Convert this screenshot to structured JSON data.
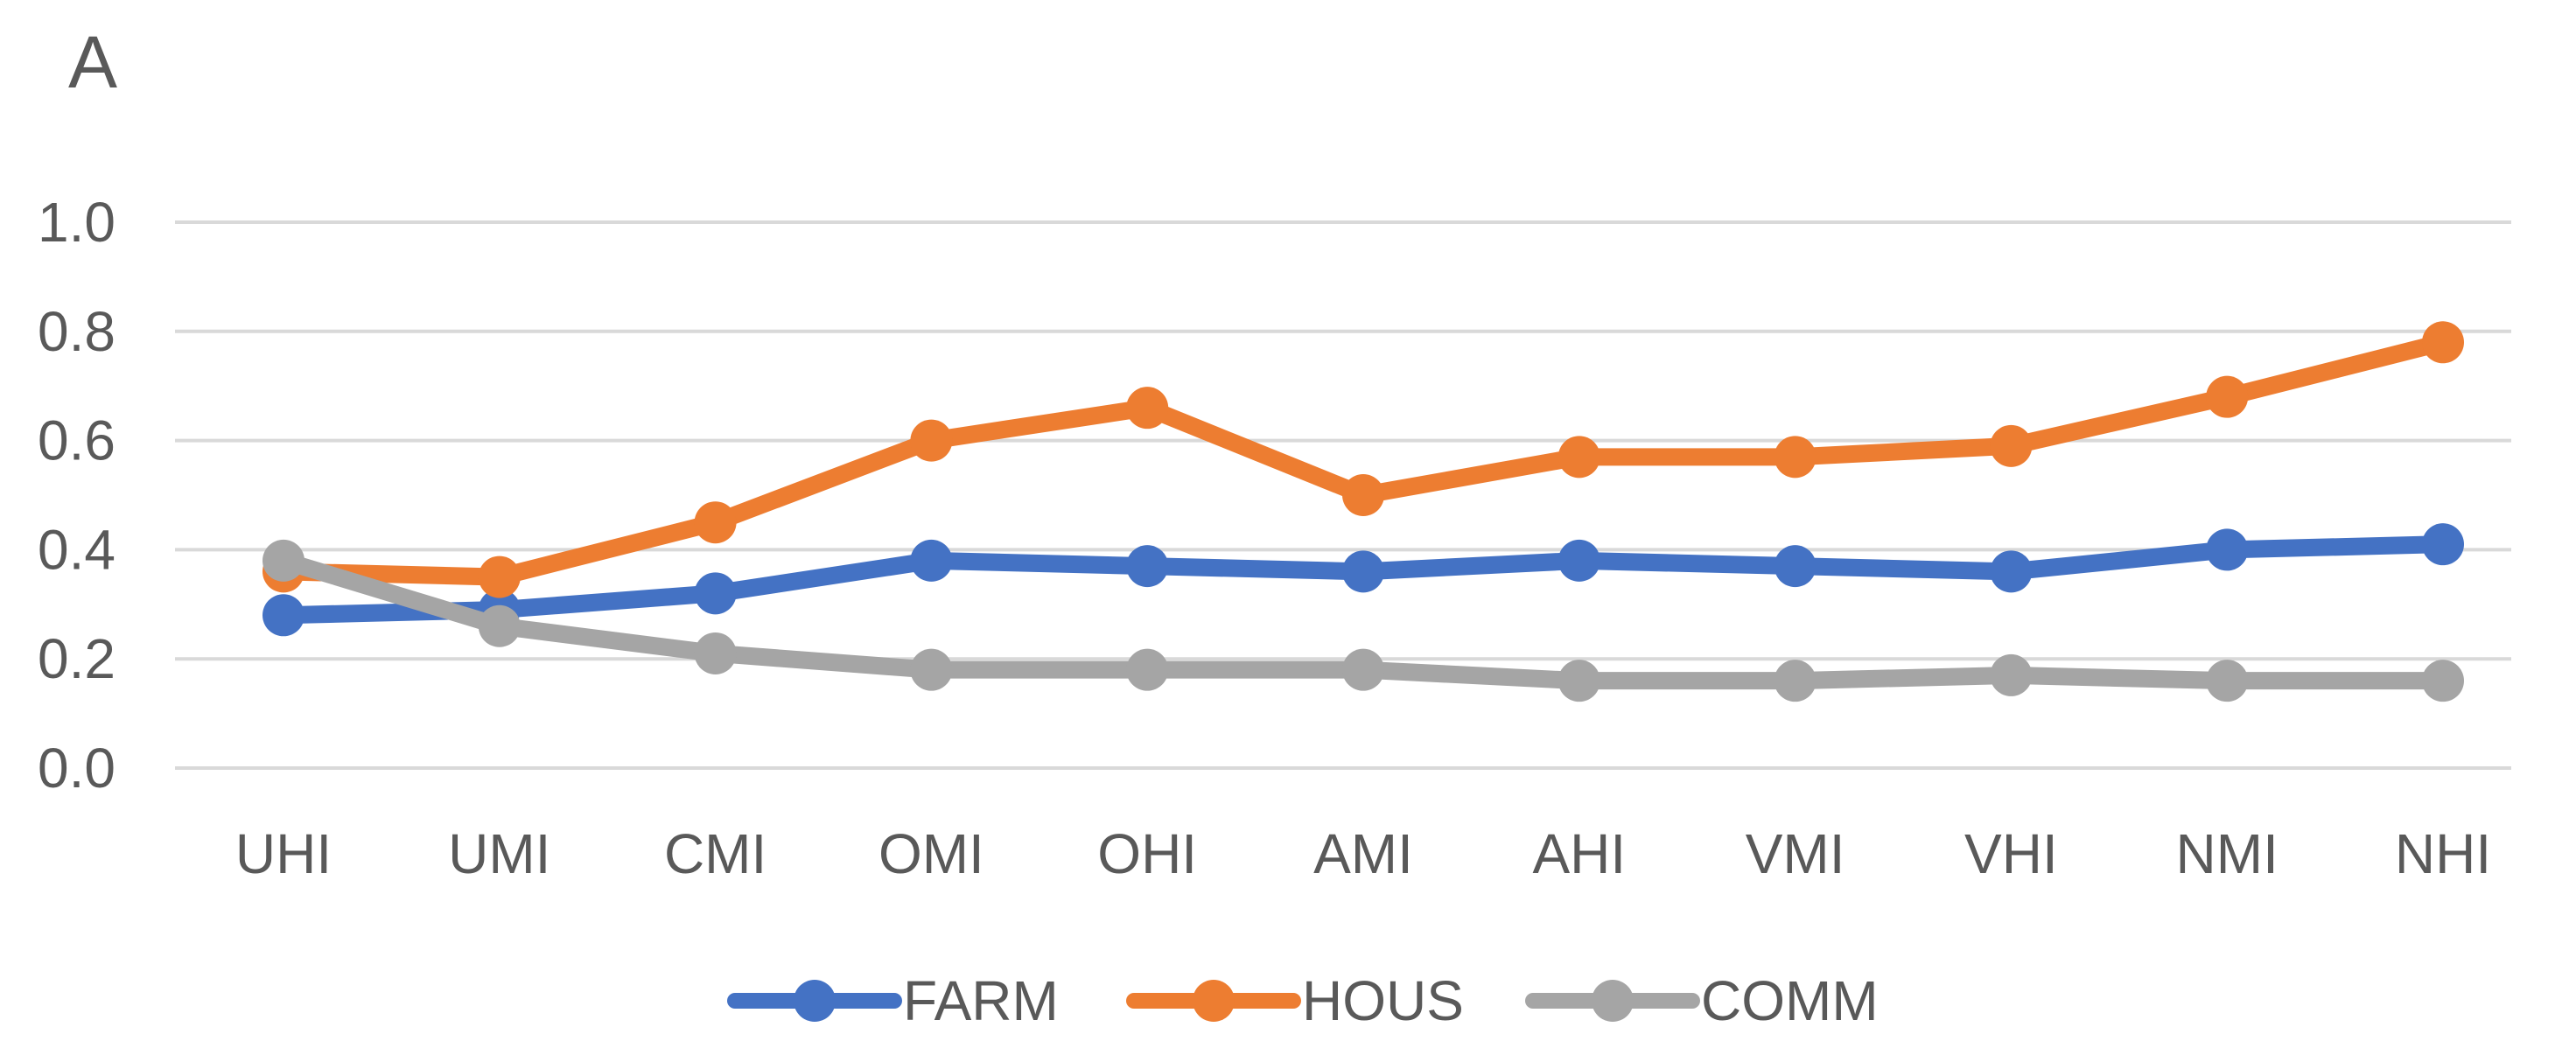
{
  "chart_data": {
    "type": "line",
    "panel_label": "A",
    "title": "",
    "xlabel": "",
    "ylabel": "",
    "categories": [
      "UHI",
      "UMI",
      "CMI",
      "OMI",
      "OHI",
      "AMI",
      "AHI",
      "VMI",
      "VHI",
      "NMI",
      "NHI"
    ],
    "ylim": [
      0.0,
      1.0
    ],
    "yticks": [
      {
        "value": 0.0,
        "label": "0.0"
      },
      {
        "value": 0.2,
        "label": "0.2"
      },
      {
        "value": 0.4,
        "label": "0.4"
      },
      {
        "value": 0.6,
        "label": "0.6"
      },
      {
        "value": 0.8,
        "label": "0.8"
      },
      {
        "value": 1.0,
        "label": "1.0"
      }
    ],
    "grid": true,
    "legend_position": "bottom",
    "series": [
      {
        "name": "FARM",
        "color": "#4472c4",
        "values": [
          0.28,
          0.29,
          0.32,
          0.38,
          0.37,
          0.36,
          0.38,
          0.37,
          0.36,
          0.4,
          0.41
        ]
      },
      {
        "name": "HOUS",
        "color": "#ed7d31",
        "values": [
          0.36,
          0.35,
          0.45,
          0.6,
          0.66,
          0.5,
          0.57,
          0.57,
          0.59,
          0.68,
          0.78
        ]
      },
      {
        "name": "COMM",
        "color": "#a5a5a5",
        "values": [
          0.38,
          0.26,
          0.21,
          0.18,
          0.18,
          0.18,
          0.16,
          0.16,
          0.17,
          0.16,
          0.16
        ]
      }
    ]
  }
}
